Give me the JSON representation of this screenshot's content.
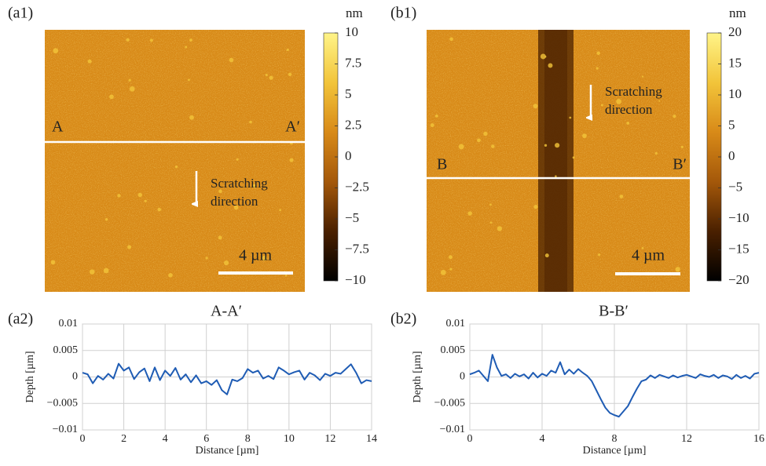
{
  "chart_data": [
    {
      "type": "image",
      "panel": "(a1)",
      "colorbar_label": "nm",
      "clim": [
        -10,
        10
      ],
      "cticks": [
        10,
        7.5,
        5,
        2.5,
        0,
        {
          "value": -2.5,
          "label": "−2.5"
        },
        {
          "value": -5,
          "label": "−5"
        },
        {
          "value": -7.5,
          "label": "−7.5"
        },
        {
          "value": -10,
          "label": "−10"
        }
      ],
      "colormap": [
        "#000000",
        "#4a2000",
        "#a4580a",
        "#d88a18",
        "#f2c43a",
        "#fff488"
      ],
      "line_labels": [
        "A",
        "A′"
      ],
      "annotation_lines": [
        "Scratching",
        "direction"
      ],
      "scale_bar": "4 µm"
    },
    {
      "type": "image",
      "panel": "(b1)",
      "colorbar_label": "nm",
      "clim": [
        -20,
        20
      ],
      "cticks": [
        20,
        15,
        10,
        5,
        0,
        {
          "value": -5,
          "label": "−5"
        },
        {
          "value": -10,
          "label": "−10"
        },
        {
          "value": -15,
          "label": "−15"
        },
        {
          "value": -20,
          "label": "−20"
        }
      ],
      "colormap": [
        "#000000",
        "#4a2000",
        "#a4580a",
        "#d88a18",
        "#f2c43a",
        "#fff488"
      ],
      "line_labels": [
        "B",
        "B′"
      ],
      "annotation_lines": [
        "Scratching",
        "direction"
      ],
      "scale_bar": "4 µm"
    },
    {
      "type": "line",
      "panel": "(a2)",
      "title": "A-A′",
      "xlabel": "Distance [µm]",
      "ylabel": "Depth [µm]",
      "color": "#1f5cb4",
      "grid": true,
      "xlim": [
        0,
        14
      ],
      "xticks": [
        0,
        2,
        4,
        6,
        8,
        10,
        12,
        14
      ],
      "ylim": [
        -0.01,
        0.01
      ],
      "yticks": [
        {
          "value": -0.01,
          "label": "−0.01"
        },
        {
          "value": -0.005,
          "label": "−0.005"
        },
        0,
        0.005,
        0.01
      ],
      "x": [
        0,
        0.25,
        0.5,
        0.75,
        1,
        1.25,
        1.5,
        1.75,
        2,
        2.25,
        2.5,
        2.75,
        3,
        3.25,
        3.5,
        3.75,
        4,
        4.25,
        4.5,
        4.75,
        5,
        5.25,
        5.5,
        5.75,
        6,
        6.25,
        6.5,
        6.75,
        7,
        7.25,
        7.5,
        7.75,
        8,
        8.25,
        8.5,
        8.75,
        9,
        9.25,
        9.5,
        9.75,
        10,
        10.25,
        10.5,
        10.75,
        11,
        11.25,
        11.5,
        11.75,
        12,
        12.25,
        12.5,
        12.75,
        13,
        13.25,
        13.5,
        13.75,
        14
      ],
      "values": [
        0.0008,
        0.0005,
        -0.0012,
        0.0002,
        -0.0005,
        0.0006,
        -0.0003,
        0.0025,
        0.0012,
        0.0018,
        -0.0004,
        0.0009,
        0.0016,
        -0.0008,
        0.0018,
        -0.0006,
        0.0012,
        0.0002,
        0.0017,
        -0.0005,
        0.0005,
        -0.001,
        0.0003,
        -0.0012,
        -0.0008,
        -0.0015,
        -0.0006,
        -0.0025,
        -0.0033,
        -0.0005,
        -0.0008,
        -0.0002,
        0.0015,
        0.0008,
        0.0012,
        -0.0003,
        0.0002,
        -0.0004,
        0.0018,
        0.0012,
        0.0005,
        0.0009,
        0.0012,
        -0.0005,
        0.0008,
        0.0003,
        -0.0006,
        0.0006,
        0.0002,
        0.0008,
        0.0006,
        0.0015,
        0.0024,
        0.0008,
        -0.0012,
        -0.0006,
        -0.0008
      ]
    },
    {
      "type": "line",
      "panel": "(b2)",
      "title": "B-B′",
      "xlabel": "Distance [µm]",
      "ylabel": "Depth [µm]",
      "color": "#1f5cb4",
      "grid": true,
      "xlim": [
        0,
        16
      ],
      "xticks": [
        0,
        4,
        8,
        12,
        16
      ],
      "ylim": [
        -0.01,
        0.01
      ],
      "yticks": [
        {
          "value": -0.01,
          "label": "−0.01"
        },
        {
          "value": -0.005,
          "label": "−0.005"
        },
        0,
        0.005,
        0.01
      ],
      "x": [
        0,
        0.25,
        0.5,
        0.75,
        1,
        1.25,
        1.5,
        1.75,
        2,
        2.25,
        2.5,
        2.75,
        3,
        3.25,
        3.5,
        3.75,
        4,
        4.25,
        4.5,
        4.75,
        5,
        5.25,
        5.5,
        5.75,
        6,
        6.25,
        6.5,
        6.75,
        7,
        7.25,
        7.5,
        7.75,
        8,
        8.25,
        8.5,
        8.75,
        9,
        9.25,
        9.5,
        9.75,
        10,
        10.25,
        10.5,
        10.75,
        11,
        11.25,
        11.5,
        11.75,
        12,
        12.25,
        12.5,
        12.75,
        13,
        13.25,
        13.5,
        13.75,
        14,
        14.25,
        14.5,
        14.75,
        15,
        15.25,
        15.5,
        15.75,
        16
      ],
      "values": [
        0.0005,
        0.0008,
        0.0012,
        0.0002,
        -0.0008,
        0.0042,
        0.0018,
        0.0002,
        0.0005,
        -0.0002,
        0.0006,
        0.0001,
        0.0005,
        -0.0003,
        0.0008,
        -0.0001,
        0.0006,
        0.0002,
        0.0012,
        0.0008,
        0.0028,
        0.0005,
        0.0014,
        0.0006,
        0.0015,
        0.0008,
        0.0002,
        -0.0008,
        -0.0025,
        -0.0042,
        -0.0058,
        -0.0068,
        -0.0072,
        -0.0075,
        -0.0065,
        -0.0055,
        -0.0038,
        -0.0022,
        -0.0008,
        -0.0005,
        0.0003,
        -0.0002,
        0.0004,
        0.0001,
        -0.0002,
        0.0003,
        -0.0001,
        0.0002,
        0.0004,
        0.0001,
        -0.0002,
        0.0005,
        0.0002,
        0,
        0.0004,
        -0.0002,
        0.0003,
        0.0001,
        -0.0004,
        0.0004,
        -0.0002,
        0.0002,
        -0.0003,
        0.0006,
        0.0008
      ]
    }
  ]
}
